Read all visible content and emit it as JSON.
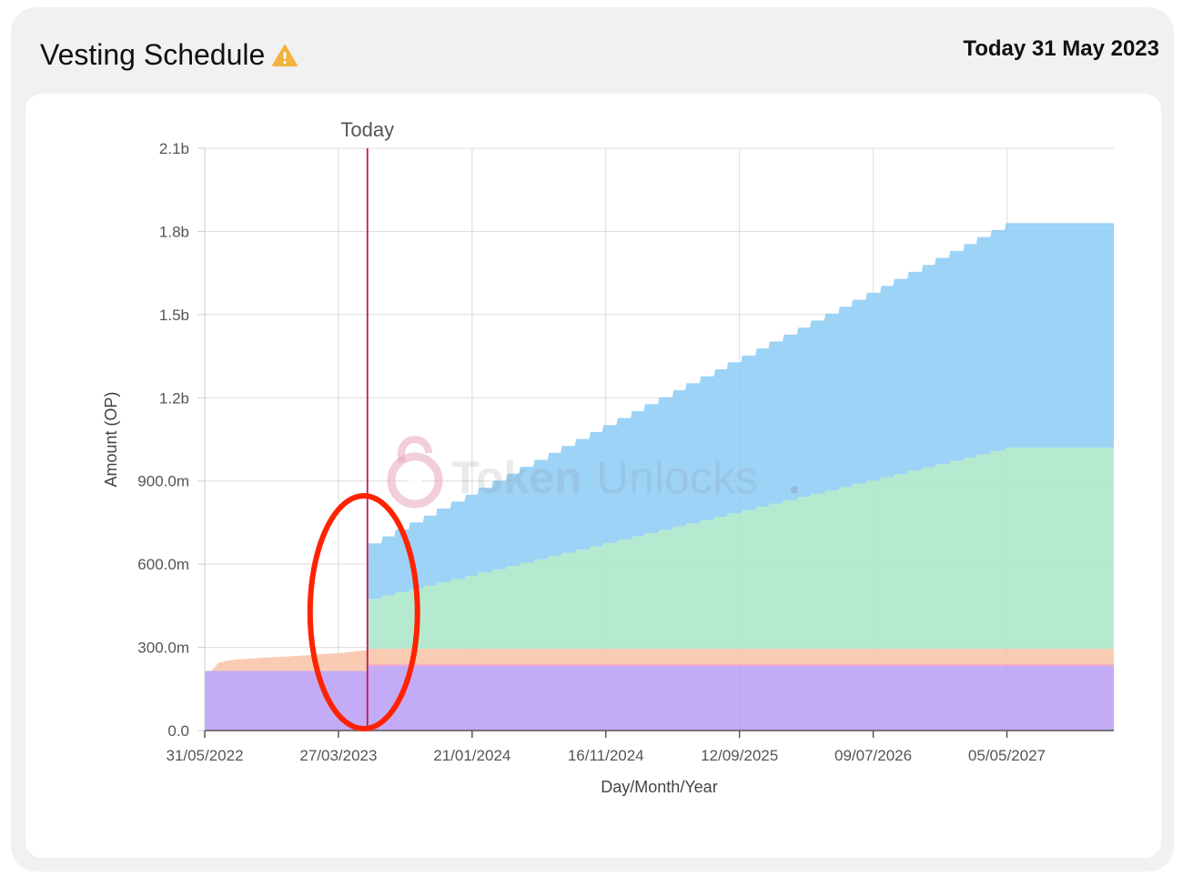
{
  "header": {
    "title": "Vesting Schedule",
    "today_text": "Today 31 May 2023",
    "warning_icon": "warning-icon"
  },
  "watermark": {
    "text_a": "Token",
    "text_b": "Unlocks",
    "dot": "."
  },
  "chart_data": {
    "type": "area",
    "title": "",
    "xlabel": "Day/Month/Year",
    "ylabel": "Amount (OP)",
    "today_marker_label": "Today",
    "today_date": "31/05/2023",
    "x_range": [
      "31/05/2022",
      "31/12/2027"
    ],
    "ylim": [
      0,
      2100000000
    ],
    "y_ticks": [
      {
        "value": 0,
        "label": "0.0"
      },
      {
        "value": 300000000,
        "label": "300.0m"
      },
      {
        "value": 600000000,
        "label": "600.0m"
      },
      {
        "value": 900000000,
        "label": "900.0m"
      },
      {
        "value": 1200000000,
        "label": "1.2b"
      },
      {
        "value": 1500000000,
        "label": "1.5b"
      },
      {
        "value": 1800000000,
        "label": "1.8b"
      },
      {
        "value": 2100000000,
        "label": "2.1b"
      }
    ],
    "x_ticks": [
      "31/05/2022",
      "27/03/2023",
      "21/01/2024",
      "16/11/2024",
      "12/09/2025",
      "09/07/2026",
      "05/05/2027"
    ],
    "grid": true,
    "stacked": true,
    "series": [
      {
        "color": "#b99cf5",
        "points": [
          [
            "31/05/2022",
            215000000
          ],
          [
            "31/05/2023",
            215000000
          ],
          [
            "01/06/2023",
            232000000
          ],
          [
            "31/12/2027",
            232000000
          ]
        ]
      },
      {
        "color": "#f08fc6",
        "points": [
          [
            "31/05/2022",
            0
          ],
          [
            "31/05/2023",
            0
          ],
          [
            "01/06/2023",
            6000000
          ],
          [
            "31/12/2027",
            6000000
          ]
        ]
      },
      {
        "color": "#f9c2a6",
        "points": [
          [
            "31/05/2022",
            0
          ],
          [
            "15/06/2022",
            0
          ],
          [
            "01/07/2022",
            30000000
          ],
          [
            "01/08/2022",
            40000000
          ],
          [
            "01/10/2022",
            47000000
          ],
          [
            "01/12/2022",
            52000000
          ],
          [
            "01/02/2023",
            58000000
          ],
          [
            "01/04/2023",
            65000000
          ],
          [
            "31/05/2023",
            75000000
          ],
          [
            "01/06/2023",
            57000000
          ],
          [
            "31/12/2027",
            57000000
          ]
        ]
      },
      {
        "color": "#a8e6c8",
        "step": true,
        "points": [
          [
            "31/05/2023",
            0
          ],
          [
            "01/06/2023",
            180000000
          ],
          [
            "01/05/2027",
            725000000
          ],
          [
            "31/12/2027",
            725000000
          ]
        ]
      },
      {
        "color": "#8ccbf5",
        "step": true,
        "points": [
          [
            "31/05/2023",
            0
          ],
          [
            "01/06/2023",
            200000000
          ],
          [
            "01/05/2027",
            810000000
          ],
          [
            "31/12/2027",
            810000000
          ]
        ]
      }
    ]
  },
  "annotation": {
    "type": "ellipse",
    "color": "#ff2200"
  }
}
